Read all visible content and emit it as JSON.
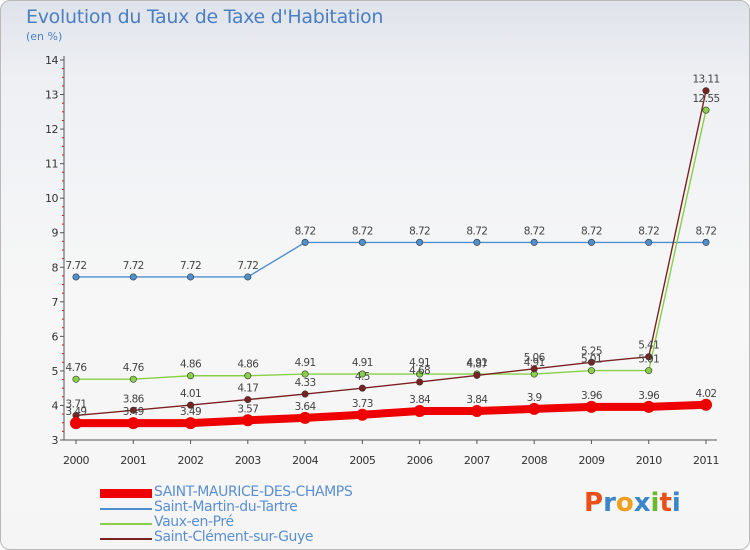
{
  "title": "Evolution du Taux de Taxe d'Habitation",
  "subtitle": "(en %)",
  "logo_text": "Proxiti",
  "colors": {
    "axis": "#555555",
    "tick_text": "#333333",
    "label_text": "#444444",
    "logo": [
      "#e8501a",
      "#3a86c8",
      "#f0a020",
      "#3a86c8",
      "#6bb82a",
      "#e8501a",
      "#3a86c8"
    ]
  },
  "chart_data": {
    "type": "line",
    "title": "Evolution du Taux de Taxe d'Habitation",
    "ylabel": "(en %)",
    "xlabel": "",
    "ylim": [
      3,
      14
    ],
    "yticks": [
      3,
      4,
      5,
      6,
      7,
      8,
      9,
      10,
      11,
      12,
      13,
      14
    ],
    "grid": false,
    "legend_position": "bottom-left",
    "x": [
      "2000",
      "2001",
      "2002",
      "2003",
      "2004",
      "2005",
      "2006",
      "2007",
      "2008",
      "2009",
      "2010",
      "2011"
    ],
    "series": [
      {
        "name": "SAINT-MAURICE-DES-CHAMPS",
        "color": "#ee0000",
        "values": [
          3.49,
          3.49,
          3.49,
          3.57,
          3.64,
          3.73,
          3.84,
          3.84,
          3.9,
          3.96,
          3.96,
          4.02
        ],
        "labels": [
          "3.49",
          "3.49",
          "3.49",
          "3.57",
          "3.64",
          "3.73",
          "3.84",
          "3.84",
          "3.9",
          "3.96",
          "3.96",
          "4.02"
        ]
      },
      {
        "name": "Saint-Martin-du-Tartre",
        "color": "#4f8fcc",
        "values": [
          7.72,
          7.72,
          7.72,
          7.72,
          8.72,
          8.72,
          8.72,
          8.72,
          8.72,
          8.72,
          8.72,
          8.72
        ],
        "labels": [
          "7.72",
          "7.72",
          "7.72",
          "7.72",
          "8.72",
          "8.72",
          "8.72",
          "8.72",
          "8.72",
          "8.72",
          "8.72",
          "8.72"
        ]
      },
      {
        "name": "Vaux-en-Pré",
        "color": "#88d048",
        "values": [
          4.76,
          4.76,
          4.86,
          4.86,
          4.91,
          4.91,
          4.91,
          4.91,
          4.91,
          5.01,
          5.01,
          12.55
        ],
        "labels": [
          "4.76",
          "4.76",
          "4.86",
          "4.86",
          "4.91",
          "4.91",
          "4.91",
          "4.91",
          "4.91",
          "5.01",
          "5.01",
          "12.55"
        ]
      },
      {
        "name": "Saint-Clément-sur-Guye",
        "color": "#7a2222",
        "values": [
          3.71,
          3.86,
          4.01,
          4.17,
          4.33,
          4.5,
          4.68,
          4.87,
          5.06,
          5.25,
          5.41,
          13.11
        ],
        "labels": [
          "3.71",
          "3.86",
          "4.01",
          "4.17",
          "4.33",
          "4.5",
          "4.68",
          "4.87",
          "5.06",
          "5.25",
          "5.41",
          "13.11"
        ]
      }
    ]
  }
}
